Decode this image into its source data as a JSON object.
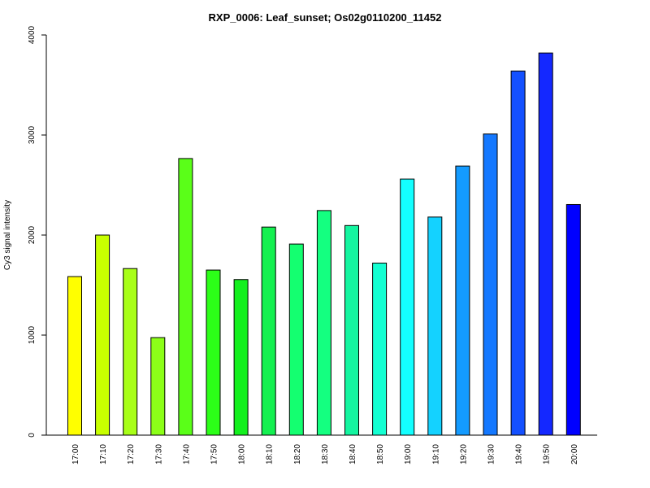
{
  "chart_data": {
    "type": "bar",
    "title": "RXP_0006: Leaf_sunset; Os02g0110200_11452",
    "xlabel": "",
    "ylabel": "Cy3 signal intensity",
    "ylim": [
      0,
      4000
    ],
    "yticks": [
      0,
      1000,
      2000,
      3000,
      4000
    ],
    "categories": [
      "17:00",
      "17:10",
      "17:20",
      "17:30",
      "17:40",
      "17:50",
      "18:00",
      "18:10",
      "18:20",
      "18:30",
      "18:40",
      "18:50",
      "19:00",
      "19:10",
      "19:20",
      "19:30",
      "19:40",
      "19:50",
      "20:00"
    ],
    "values": [
      1585,
      2000,
      1665,
      975,
      2765,
      1650,
      1555,
      2080,
      1910,
      2245,
      2095,
      1720,
      2560,
      2180,
      2690,
      3010,
      3640,
      3820,
      2305
    ],
    "colors": [
      "#FFFF00",
      "#C8FF00",
      "#A8FF18",
      "#8CFF18",
      "#5AFF18",
      "#2CFF18",
      "#14F01E",
      "#14F050",
      "#14FF70",
      "#14FF80",
      "#14F5A0",
      "#14FFD2",
      "#14FFFF",
      "#14D2FF",
      "#149BFF",
      "#1478FF",
      "#1450FF",
      "#1428FF",
      "#0000FF"
    ],
    "grid": false,
    "legend": "none"
  }
}
